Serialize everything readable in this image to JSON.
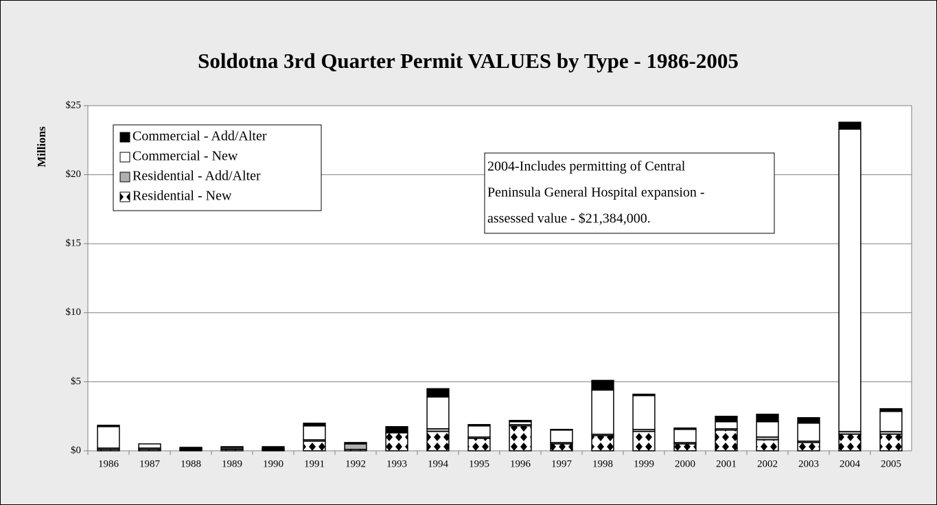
{
  "chart_data": {
    "type": "stacked_bar",
    "title": "Soldotna 3rd Quarter Permit VALUES by Type - 1986-2005",
    "y_label": "Millions",
    "categories": [
      "1986",
      "1987",
      "1988",
      "1989",
      "1990",
      "1991",
      "1992",
      "1993",
      "1994",
      "1995",
      "1996",
      "1997",
      "1998",
      "1999",
      "2000",
      "2001",
      "2002",
      "2003",
      "2004",
      "2005"
    ],
    "series": [
      {
        "name": "Commercial - Add/Alter",
        "color": "#000000",
        "values": [
          0.1,
          0.0,
          0.1,
          0.05,
          0.15,
          0.2,
          0.1,
          0.4,
          0.6,
          0.1,
          0.1,
          0.05,
          0.7,
          0.1,
          0.1,
          0.4,
          0.55,
          0.4,
          0.5,
          0.2
        ]
      },
      {
        "name": "Commercial - New",
        "color": "#ffffff",
        "values": [
          1.55,
          0.3,
          0.05,
          0.1,
          0.05,
          1.0,
          0.0,
          0.0,
          2.3,
          0.8,
          0.2,
          0.9,
          3.2,
          2.45,
          0.95,
          0.5,
          1.1,
          1.3,
          21.9,
          1.45
        ]
      },
      {
        "name": "Residential - Add/Alter",
        "color": "#b0b0b0",
        "values": [
          0.1,
          0.1,
          0.05,
          0.05,
          0.05,
          0.1,
          0.4,
          0.05,
          0.2,
          0.1,
          0.1,
          0.1,
          0.1,
          0.15,
          0.1,
          0.1,
          0.2,
          0.1,
          0.2,
          0.2
        ]
      },
      {
        "name": "Residential - New",
        "color": "#ffffff",
        "pattern": "diamond",
        "values": [
          0.1,
          0.1,
          0.05,
          0.1,
          0.05,
          0.7,
          0.1,
          1.3,
          1.4,
          0.9,
          1.8,
          0.5,
          1.1,
          1.4,
          0.5,
          1.5,
          0.8,
          0.6,
          1.2,
          1.2
        ]
      }
    ],
    "ylim": [
      0,
      25
    ],
    "yticks": [
      {
        "value": 0,
        "label": "$0"
      },
      {
        "value": 5,
        "label": "$5"
      },
      {
        "value": 10,
        "label": "$10"
      },
      {
        "value": 15,
        "label": "$15"
      },
      {
        "value": 20,
        "label": "$20"
      },
      {
        "value": 25,
        "label": "$25"
      }
    ],
    "grid": true,
    "legend": "top-left",
    "annotation": [
      "2004-Includes permitting of Central",
      "Peninsula General Hospital expansion -",
      "assessed value - $21,384,000."
    ]
  }
}
